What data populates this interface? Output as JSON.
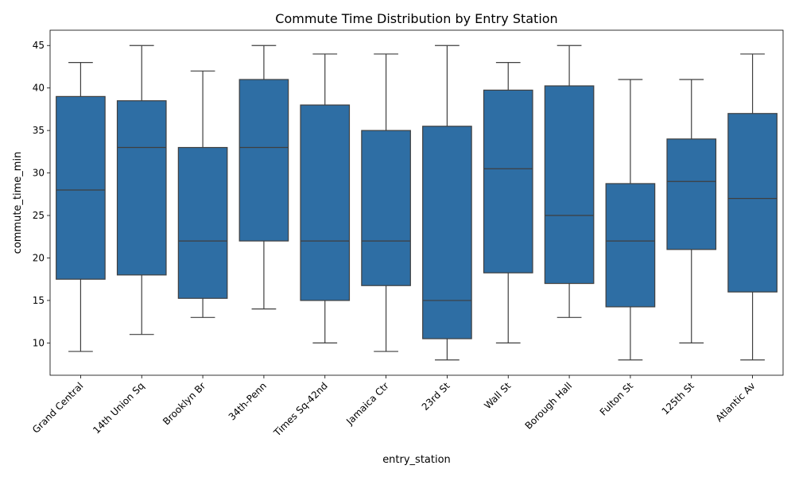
{
  "chart_data": {
    "type": "box",
    "title": "Commute Time Distribution by Entry Station",
    "xlabel": "entry_station",
    "ylabel": "commute_time_min",
    "ylim": [
      6.2,
      46.8
    ],
    "yticks": [
      10,
      15,
      20,
      25,
      30,
      35,
      40,
      45
    ],
    "grid": false,
    "legend": "none",
    "color": "#2e6ea4",
    "line_color": "#3f3f3f",
    "categories": [
      "Grand Central",
      "14th Union Sq",
      "Brooklyn Br",
      "34th-Penn",
      "Times Sq-42nd",
      "Jamaica Ctr",
      "23rd St",
      "Wall St",
      "Borough Hall",
      "Fulton St",
      "125th St",
      "Atlantic Av"
    ],
    "boxes": [
      {
        "min": 9,
        "q1": 17.5,
        "median": 28,
        "q3": 39,
        "max": 43
      },
      {
        "min": 11,
        "q1": 18,
        "median": 33,
        "q3": 38.5,
        "max": 45
      },
      {
        "min": 13,
        "q1": 15.25,
        "median": 22,
        "q3": 33,
        "max": 42
      },
      {
        "min": 14,
        "q1": 22,
        "median": 33,
        "q3": 41,
        "max": 45
      },
      {
        "min": 10,
        "q1": 15,
        "median": 22,
        "q3": 38,
        "max": 44
      },
      {
        "min": 9,
        "q1": 16.75,
        "median": 22,
        "q3": 35,
        "max": 44
      },
      {
        "min": 8,
        "q1": 10.5,
        "median": 15,
        "q3": 35.5,
        "max": 45
      },
      {
        "min": 10,
        "q1": 18.25,
        "median": 30.5,
        "q3": 39.75,
        "max": 43
      },
      {
        "min": 13,
        "q1": 17,
        "median": 25,
        "q3": 40.25,
        "max": 45
      },
      {
        "min": 8,
        "q1": 14.25,
        "median": 22,
        "q3": 28.75,
        "max": 41
      },
      {
        "min": 10,
        "q1": 21,
        "median": 29,
        "q3": 34,
        "max": 41
      },
      {
        "min": 8,
        "q1": 16,
        "median": 27,
        "q3": 37,
        "max": 44
      }
    ]
  }
}
